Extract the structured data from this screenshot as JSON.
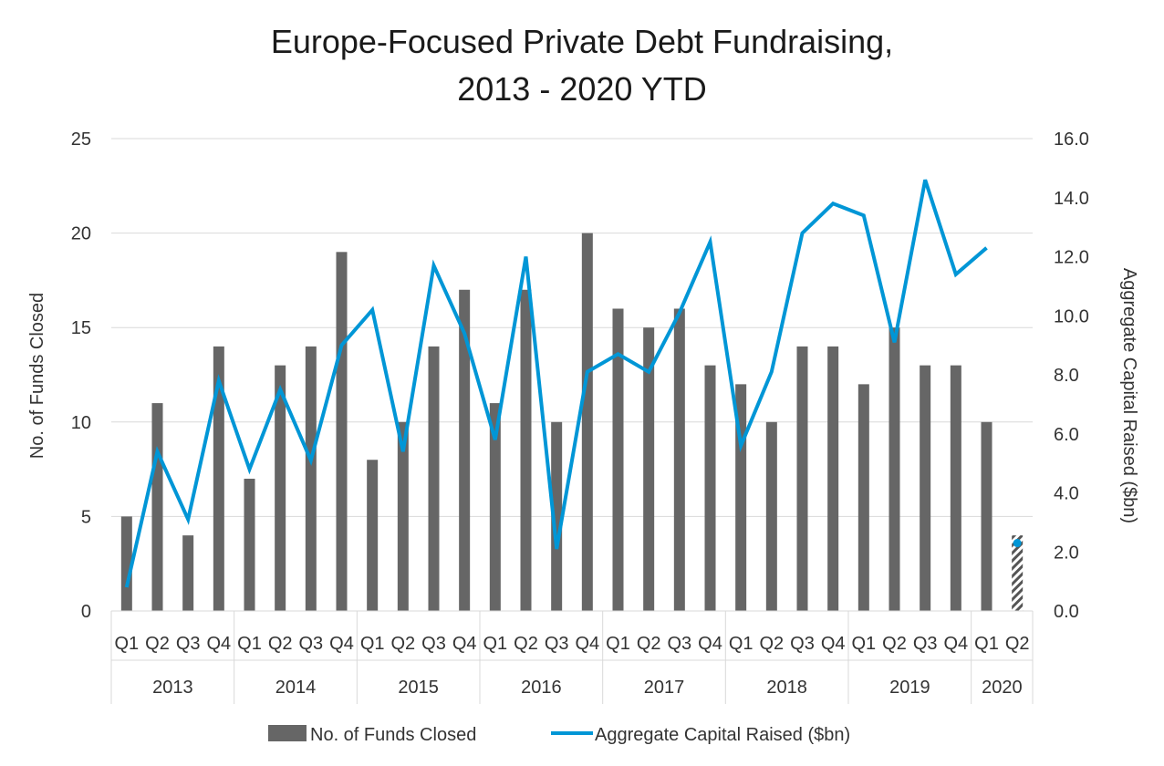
{
  "chart_data": {
    "type": "bar",
    "title": [
      "Europe-Focused Private Debt Fundraising,",
      "2013 - 2020 YTD"
    ],
    "categories": [
      "Q1",
      "Q2",
      "Q3",
      "Q4",
      "Q1",
      "Q2",
      "Q3",
      "Q4",
      "Q1",
      "Q2",
      "Q3",
      "Q4",
      "Q1",
      "Q2",
      "Q3",
      "Q4",
      "Q1",
      "Q2",
      "Q3",
      "Q4",
      "Q1",
      "Q2",
      "Q3",
      "Q4",
      "Q1",
      "Q2",
      "Q3",
      "Q4",
      "Q1",
      "Q2"
    ],
    "year_groups": [
      {
        "label": "2013",
        "count": 4
      },
      {
        "label": "2014",
        "count": 4
      },
      {
        "label": "2015",
        "count": 4
      },
      {
        "label": "2016",
        "count": 4
      },
      {
        "label": "2017",
        "count": 4
      },
      {
        "label": "2018",
        "count": 4
      },
      {
        "label": "2019",
        "count": 4
      },
      {
        "label": "2020",
        "count": 2
      }
    ],
    "series": [
      {
        "name": "No. of Funds Closed",
        "type": "bar",
        "axis": "left",
        "color": "#666666",
        "values": [
          5,
          11,
          4,
          14,
          7,
          13,
          14,
          19,
          8,
          10,
          14,
          17,
          11,
          17,
          10,
          20,
          16,
          15,
          16,
          13,
          12,
          10,
          14,
          14,
          12,
          15,
          13,
          13,
          10,
          4
        ],
        "hatched_last": true
      },
      {
        "name": "Aggregate Capital Raised ($bn)",
        "type": "line",
        "axis": "right",
        "color": "#0096D6",
        "values": [
          0.8,
          5.4,
          3.1,
          7.8,
          4.8,
          7.5,
          5.1,
          9.0,
          10.2,
          5.4,
          11.7,
          9.4,
          5.8,
          12.0,
          2.1,
          8.1,
          8.7,
          8.1,
          10.1,
          12.5,
          5.6,
          8.1,
          12.8,
          13.8,
          13.4,
          9.1,
          14.6,
          11.4,
          12.3,
          2.3
        ],
        "break_before_last": true
      }
    ],
    "ylabel": "No. of Funds Closed",
    "ylim": [
      0,
      25
    ],
    "yticks": [
      "0",
      "5",
      "10",
      "15",
      "20",
      "25"
    ],
    "y2label": "Aggregate Capital Raised ($bn)",
    "y2lim": [
      0,
      16
    ],
    "y2ticks": [
      "0.0",
      "2.0",
      "4.0",
      "6.0",
      "8.0",
      "10.0",
      "12.0",
      "14.0",
      "16.0"
    ],
    "grid": true,
    "legend_position": "bottom"
  }
}
